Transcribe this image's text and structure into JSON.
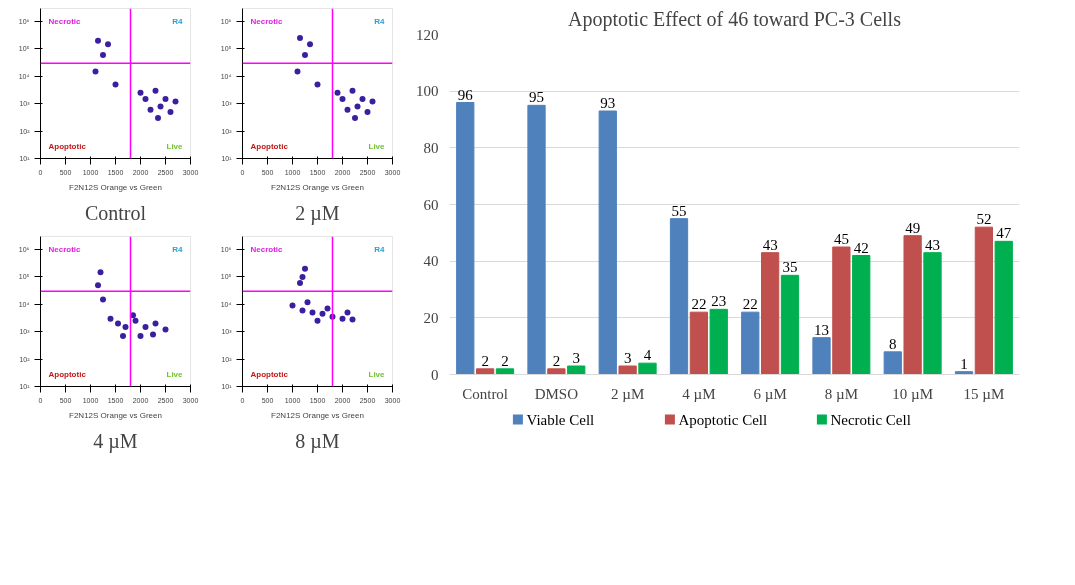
{
  "chart_data": [
    {
      "type": "scatter",
      "title": "Control",
      "xlabel": "F2N12S Orange vs Green",
      "xlim": [
        0,
        3000
      ],
      "xticks": [
        0,
        500,
        1000,
        1500,
        2000,
        2500,
        3000
      ],
      "ylim": [
        10,
        3000000
      ],
      "yticks": [
        {
          "value": 10,
          "label": "10¹"
        },
        {
          "value": 100,
          "label": "10²"
        },
        {
          "value": 1000,
          "label": "10³"
        },
        {
          "value": 10000,
          "label": "10⁴"
        },
        {
          "value": 100000,
          "label": "10⁵"
        },
        {
          "value": 1000000,
          "label": "10⁶"
        }
      ],
      "log": "y",
      "marker": "circle",
      "grid": false,
      "ref_lines": [
        {
          "axis": "x",
          "value": 1800,
          "color": "#ff00ff"
        },
        {
          "axis": "y",
          "value": 30000,
          "color": "#ff00ff"
        }
      ],
      "annotations": [
        "Necrotic",
        "R4",
        "Apoptotic",
        "Live"
      ],
      "series": [
        {
          "color": "#3b1f9e",
          "x": [
            1150,
            1350,
            1250,
            1100,
            1500,
            2100,
            2300,
            2500,
            2700,
            2200,
            2400,
            2600,
            2000,
            2350
          ],
          "values": [
            200000,
            150000,
            60000,
            15000,
            5000,
            1500,
            3000,
            1500,
            1200,
            600,
            800,
            500,
            2500,
            300
          ]
        }
      ]
    },
    {
      "type": "scatter",
      "title": "2 µM",
      "xlabel": "F2N12S Orange vs Green",
      "xlim": [
        0,
        3000
      ],
      "xticks": [
        0,
        500,
        1000,
        1500,
        2000,
        2500,
        3000
      ],
      "ylim": [
        10,
        3000000
      ],
      "yticks": [
        {
          "value": 10,
          "label": "10¹"
        },
        {
          "value": 100,
          "label": "10²"
        },
        {
          "value": 1000,
          "label": "10³"
        },
        {
          "value": 10000,
          "label": "10⁴"
        },
        {
          "value": 100000,
          "label": "10⁵"
        },
        {
          "value": 1000000,
          "label": "10⁶"
        }
      ],
      "log": "y",
      "marker": "circle",
      "grid": false,
      "ref_lines": [
        {
          "axis": "x",
          "value": 1800,
          "color": "#ff00ff"
        },
        {
          "axis": "y",
          "value": 30000,
          "color": "#ff00ff"
        }
      ],
      "annotations": [
        "Necrotic",
        "R4",
        "Apoptotic",
        "Live"
      ],
      "series": [
        {
          "color": "#3b1f9e",
          "x": [
            1150,
            1350,
            1250,
            1100,
            1500,
            2000,
            2200,
            2400,
            2600,
            2100,
            2300,
            2500,
            1900,
            2250
          ],
          "values": [
            250000,
            150000,
            60000,
            15000,
            5000,
            1500,
            3000,
            1500,
            1200,
            600,
            800,
            500,
            2500,
            300
          ]
        }
      ]
    },
    {
      "type": "scatter",
      "title": "4 µM",
      "xlabel": "F2N12S Orange vs Green",
      "xlim": [
        0,
        3000
      ],
      "xticks": [
        0,
        500,
        1000,
        1500,
        2000,
        2500,
        3000
      ],
      "ylim": [
        10,
        3000000
      ],
      "yticks": [
        {
          "value": 10,
          "label": "10¹"
        },
        {
          "value": 100,
          "label": "10²"
        },
        {
          "value": 1000,
          "label": "10³"
        },
        {
          "value": 10000,
          "label": "10⁴"
        },
        {
          "value": 100000,
          "label": "10⁵"
        },
        {
          "value": 1000000,
          "label": "10⁶"
        }
      ],
      "log": "y",
      "marker": "circle",
      "grid": false,
      "ref_lines": [
        {
          "axis": "x",
          "value": 1800,
          "color": "#ff00ff"
        },
        {
          "axis": "y",
          "value": 30000,
          "color": "#ff00ff"
        }
      ],
      "annotations": [
        "Necrotic",
        "R4",
        "Apoptotic",
        "Live"
      ],
      "series": [
        {
          "color": "#3b1f9e",
          "x": [
            1150,
            1200,
            1250,
            1400,
            1550,
            1700,
            1900,
            2100,
            2300,
            2500,
            1650,
            2000,
            2250,
            1850
          ],
          "values": [
            50000,
            150000,
            15000,
            3000,
            2000,
            1500,
            2500,
            1500,
            2000,
            1200,
            700,
            700,
            800,
            4000
          ]
        }
      ]
    },
    {
      "type": "scatter",
      "title": "8 µM",
      "xlabel": "F2N12S Orange vs Green",
      "xlim": [
        0,
        3000
      ],
      "xticks": [
        0,
        500,
        1000,
        1500,
        2000,
        2500,
        3000
      ],
      "ylim": [
        10,
        3000000
      ],
      "yticks": [
        {
          "value": 10,
          "label": "10¹"
        },
        {
          "value": 100,
          "label": "10²"
        },
        {
          "value": 1000,
          "label": "10³"
        },
        {
          "value": 10000,
          "label": "10⁴"
        },
        {
          "value": 100000,
          "label": "10⁵"
        },
        {
          "value": 1000000,
          "label": "10⁶"
        }
      ],
      "log": "y",
      "marker": "circle",
      "grid": false,
      "ref_lines": [
        {
          "axis": "x",
          "value": 1800,
          "color": "#ff00ff"
        },
        {
          "axis": "y",
          "value": 30000,
          "color": "#ff00ff"
        }
      ],
      "annotations": [
        "Necrotic",
        "R4",
        "Apoptotic",
        "Live"
      ],
      "series": [
        {
          "color": "#3b1f9e",
          "x": [
            1150,
            1250,
            1200,
            1000,
            1200,
            1400,
            1600,
            1800,
            2000,
            2200,
            1300,
            1700,
            2100,
            1500
          ],
          "values": [
            60000,
            200000,
            100000,
            9000,
            6000,
            5000,
            4500,
            3500,
            3000,
            2800,
            12000,
            7000,
            5000,
            2500
          ]
        }
      ]
    },
    {
      "type": "bar",
      "title": "Apoptotic Effect of 46 toward PC-3 Cells",
      "categories": [
        "Control",
        "DMSO",
        "2 µM",
        "4 µM",
        "6 µM",
        "8 µM",
        "10 µM",
        "15 µM"
      ],
      "ylim": [
        0,
        120
      ],
      "yticks": [
        0,
        20,
        40,
        60,
        80,
        100,
        120
      ],
      "grid": "y",
      "legend": "bottom",
      "data_labels": true,
      "series": [
        {
          "name": "Viable Cell",
          "color": "#4f81bd",
          "values": [
            96,
            95,
            93,
            55,
            22,
            13,
            8,
            1
          ]
        },
        {
          "name": "Apoptotic Cell",
          "color": "#c0504d",
          "values": [
            2,
            2,
            3,
            22,
            43,
            45,
            49,
            52
          ]
        },
        {
          "name": "Necrotic Cell",
          "color": "#00b050",
          "values": [
            2,
            3,
            4,
            23,
            35,
            42,
            43,
            47
          ]
        }
      ]
    }
  ]
}
